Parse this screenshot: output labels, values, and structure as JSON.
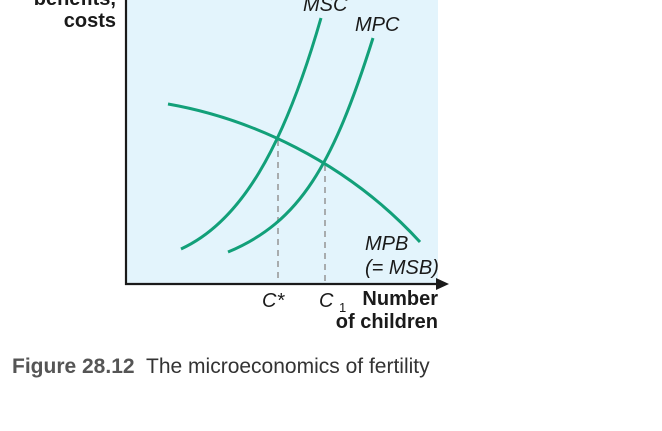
{
  "chart_data": {
    "type": "line",
    "title": "",
    "ylabel_lines": [
      "benefits,",
      "costs"
    ],
    "xlabel_lines": [
      "Number",
      "of children"
    ],
    "grid": false,
    "colors": {
      "plot_background": "#e3f4fc",
      "curve": "#12a079",
      "axis": "#1a1a1a",
      "dashed": "#9a9a9a"
    },
    "series": [
      {
        "name": "MSC",
        "label_parts": [
          {
            "text": "MSC",
            "italic": true
          }
        ]
      },
      {
        "name": "MPC",
        "label_parts": [
          {
            "text": "MPC",
            "italic": true
          }
        ]
      },
      {
        "name": "MPB (= MSB)",
        "label_lines": [
          "MPB",
          "(= MSB)"
        ]
      }
    ],
    "x_ticks": [
      {
        "id": "c-star",
        "label": "C*"
      },
      {
        "id": "c-one",
        "label": "C",
        "subscript": "1"
      }
    ],
    "intersections": [
      {
        "curves": [
          "MSC",
          "MPB"
        ],
        "x_tick": "C*"
      },
      {
        "curves": [
          "MPC",
          "MPB"
        ],
        "x_tick": "C1"
      }
    ]
  },
  "caption": {
    "figure_number": "Figure 28.12",
    "text": "The microeconomics of fertility"
  }
}
